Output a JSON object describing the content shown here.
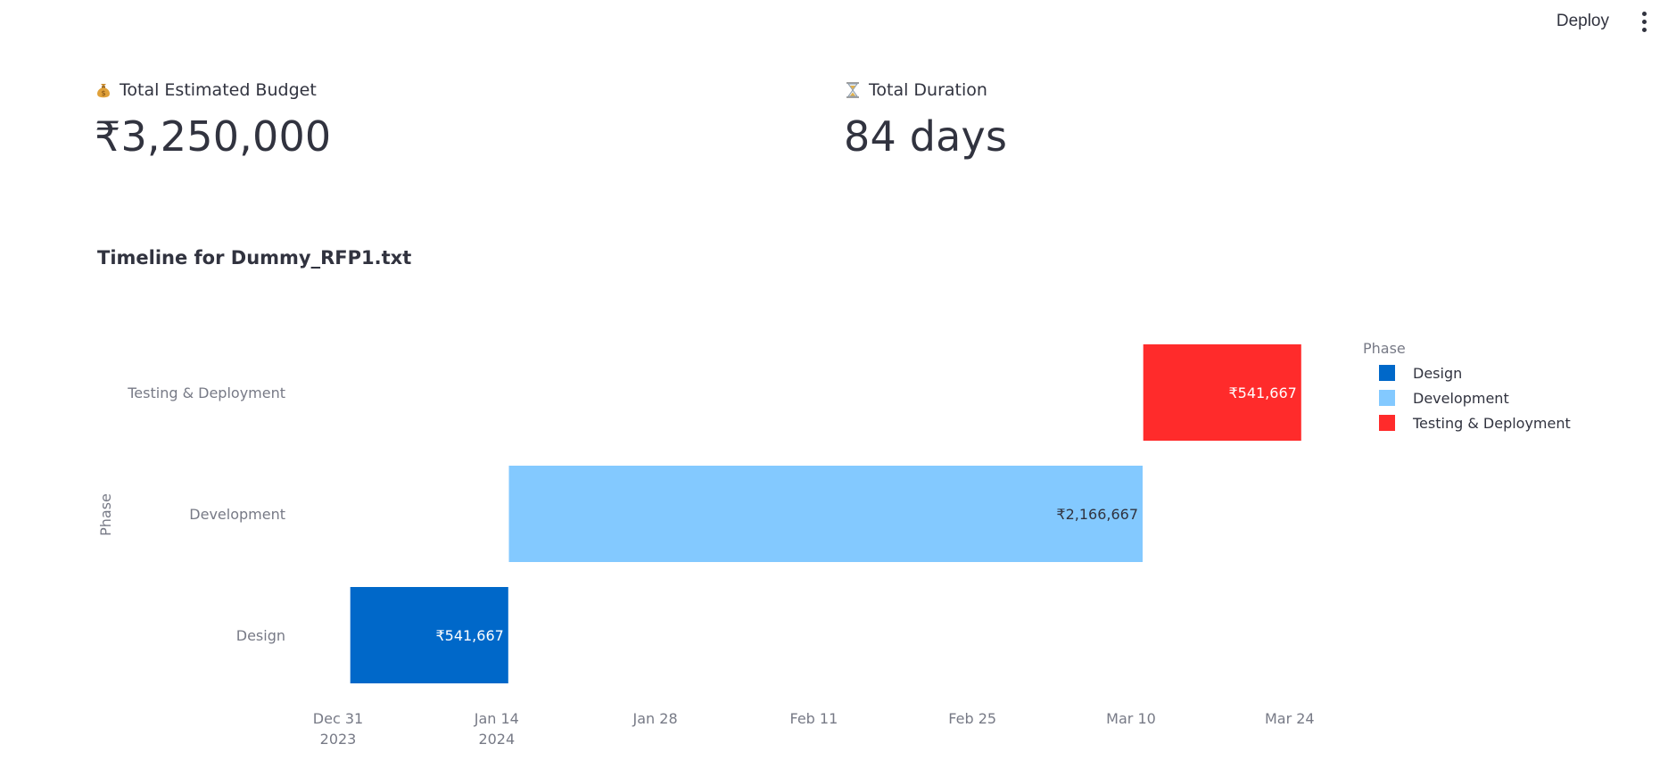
{
  "toolbar": {
    "deploy_label": "Deploy",
    "menu_icon": "more-vertical-icon"
  },
  "metrics": [
    {
      "label": "Total Estimated Budget",
      "value": "₹3,250,000",
      "icon": "money-bag-icon"
    },
    {
      "label": "Total Duration",
      "value": "84 days",
      "icon": "hourglass-icon"
    }
  ],
  "chart_title": "Timeline for Dummy_RFP1.txt",
  "chart_data": {
    "type": "bar",
    "orientation": "horizontal-timeline",
    "ylabel": "Phase",
    "categories": [
      "Design",
      "Development",
      "Testing & Deployment"
    ],
    "x_ticks": [
      {
        "date": "2023-12-31",
        "line1": "Dec 31",
        "line2": "2023"
      },
      {
        "date": "2024-01-14",
        "line1": "Jan 14",
        "line2": "2024"
      },
      {
        "date": "2024-01-28",
        "line1": "Jan 28",
        "line2": ""
      },
      {
        "date": "2024-02-11",
        "line1": "Feb 11",
        "line2": ""
      },
      {
        "date": "2024-02-25",
        "line1": "Feb 25",
        "line2": ""
      },
      {
        "date": "2024-03-10",
        "line1": "Mar 10",
        "line2": ""
      },
      {
        "date": "2024-03-24",
        "line1": "Mar 24",
        "line2": ""
      }
    ],
    "xlim": [
      "2023-12-27",
      "2024-04-02"
    ],
    "series": [
      {
        "name": "Design",
        "start": "2024-01-01",
        "end": "2024-01-14",
        "label": "₹541,667",
        "color": "#0068c9",
        "label_color": "#ffffff"
      },
      {
        "name": "Development",
        "start": "2024-01-15",
        "end": "2024-03-10",
        "label": "₹2,166,667",
        "color": "#83c9ff",
        "label_color": "#31333f"
      },
      {
        "name": "Testing & Deployment",
        "start": "2024-03-11",
        "end": "2024-03-24",
        "label": "₹541,667",
        "color": "#ff2b2b",
        "label_color": "#ffffff"
      }
    ],
    "legend": {
      "title": "Phase",
      "position": "top-right"
    },
    "grid": false
  }
}
